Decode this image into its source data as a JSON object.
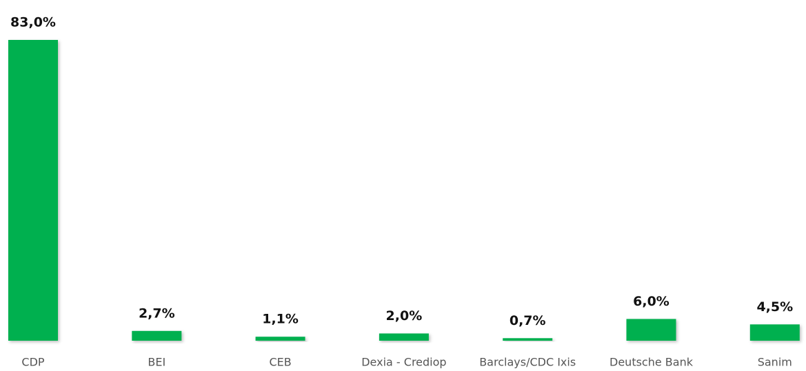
{
  "chart_data": {
    "type": "bar",
    "categories": [
      "CDP",
      "BEI",
      "CEB",
      "Dexia - Crediop",
      "Barclays/CDC Ixis",
      "Deutsche Bank",
      "Sanim"
    ],
    "values": [
      83.0,
      2.7,
      1.1,
      2.0,
      0.7,
      6.0,
      4.5
    ],
    "value_labels": [
      "83,0%",
      "2,7%",
      "1,1%",
      "2,0%",
      "0,7%",
      "6,0%",
      "4,5%"
    ],
    "color": "#00b050"
  }
}
